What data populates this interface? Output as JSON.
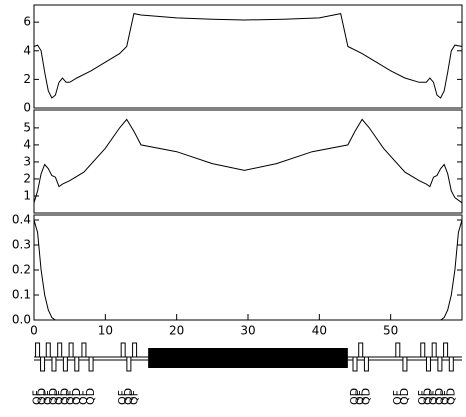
{
  "chart_data": [
    {
      "type": "line",
      "color": "#000000",
      "x": [
        0,
        0.5,
        1,
        1.5,
        2,
        2.5,
        3,
        3.5,
        4,
        4.5,
        5,
        6,
        8,
        10,
        12,
        13,
        14,
        15,
        20,
        25,
        29.5,
        35,
        40,
        43,
        44,
        46,
        48,
        50,
        52,
        54,
        55,
        55.5,
        56,
        56.5,
        57,
        57.5,
        58,
        58.5,
        59,
        60
      ],
      "values": [
        4.3,
        4.4,
        4.0,
        2.5,
        1.2,
        0.7,
        0.9,
        1.8,
        2.1,
        1.8,
        1.8,
        2.1,
        2.6,
        3.2,
        3.8,
        4.3,
        6.6,
        6.5,
        6.3,
        6.2,
        6.15,
        6.2,
        6.3,
        6.6,
        4.3,
        3.8,
        3.2,
        2.6,
        2.1,
        1.8,
        1.8,
        2.1,
        1.8,
        0.9,
        0.7,
        1.2,
        2.5,
        4.0,
        4.4,
        4.3
      ],
      "xlim": [
        0,
        60
      ],
      "ylim": [
        0,
        7.2
      ],
      "yticks": [
        0,
        2,
        4,
        6
      ]
    },
    {
      "type": "line",
      "color": "#000000",
      "x": [
        0,
        0.5,
        1,
        1.5,
        2,
        2.5,
        3,
        3.5,
        4,
        5,
        7,
        10,
        12,
        13,
        14,
        15,
        20,
        25,
        29.5,
        34,
        39,
        44,
        45,
        46,
        47,
        49,
        52,
        54,
        55,
        55.5,
        56,
        56.5,
        57,
        57.5,
        58,
        58.5,
        59,
        60
      ],
      "values": [
        0.6,
        1.3,
        2.3,
        2.85,
        2.6,
        2.2,
        2.1,
        1.55,
        1.7,
        1.9,
        2.4,
        3.8,
        5.0,
        5.5,
        4.8,
        4.0,
        3.6,
        2.9,
        2.5,
        2.9,
        3.6,
        4.0,
        4.8,
        5.5,
        5.0,
        3.8,
        2.4,
        1.9,
        1.7,
        1.55,
        2.1,
        2.2,
        2.6,
        2.85,
        2.3,
        1.3,
        0.9,
        0.6
      ],
      "xlim": [
        0,
        60
      ],
      "ylim": [
        0,
        6.05
      ],
      "yticks": [
        1,
        2,
        3,
        4,
        5
      ]
    },
    {
      "type": "line",
      "color": "#000000",
      "x": [
        0,
        0.5,
        1,
        1.5,
        2,
        2.5,
        3,
        57,
        57.5,
        58,
        58.5,
        59,
        59.5,
        60
      ],
      "values": [
        0.4,
        0.35,
        0.2,
        0.1,
        0.04,
        0.01,
        0,
        0,
        0.01,
        0.04,
        0.1,
        0.2,
        0.35,
        0.4
      ],
      "xlim": [
        0,
        60
      ],
      "ylim": [
        0,
        0.42
      ],
      "yticks": [
        {
          "value": 0,
          "label": "0.0"
        },
        0.1,
        0.2,
        0.3,
        0.4
      ],
      "xticks": [
        0,
        10,
        20,
        30,
        40,
        50
      ]
    }
  ],
  "lattice": {
    "bend": [
      16,
      44
    ],
    "elements": [
      {
        "label": "QF",
        "s": 0.5
      },
      {
        "label": "QD",
        "s": 1.2
      },
      {
        "label": "QF",
        "s": 2
      },
      {
        "label": "QD",
        "s": 2.8
      },
      {
        "label": "QF",
        "s": 3.6
      },
      {
        "label": "QD",
        "s": 4.4
      },
      {
        "label": "QF",
        "s": 5.2
      },
      {
        "label": "QD",
        "s": 6
      },
      {
        "label": "QF",
        "s": 7
      },
      {
        "label": "QD",
        "s": 8
      },
      {
        "label": "QF",
        "s": 12.5
      },
      {
        "label": "QD",
        "s": 13.3
      },
      {
        "label": "QF",
        "s": 14.1
      },
      {
        "label": "QD",
        "s": 45
      },
      {
        "label": "QF",
        "s": 45.8
      },
      {
        "label": "QD",
        "s": 46.6
      },
      {
        "label": "QF",
        "s": 51
      },
      {
        "label": "QD",
        "s": 52
      },
      {
        "label": "QF",
        "s": 54.5
      },
      {
        "label": "QD",
        "s": 55.3
      },
      {
        "label": "QF",
        "s": 56.1
      },
      {
        "label": "QD",
        "s": 56.9
      },
      {
        "label": "QF",
        "s": 57.7
      },
      {
        "label": "QD",
        "s": 58.5
      }
    ]
  }
}
